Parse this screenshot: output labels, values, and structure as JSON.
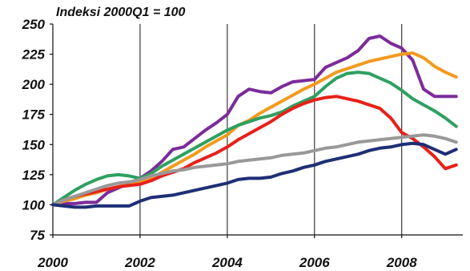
{
  "chart_data": {
    "type": "line",
    "title": "",
    "unit_label": "Indeksi 2000Q1 = 100",
    "xlabel": "",
    "ylabel": "",
    "xlim": [
      2000,
      2009.4
    ],
    "ylim": [
      75,
      250
    ],
    "y_ticks": [
      75,
      100,
      125,
      150,
      175,
      200,
      225,
      250
    ],
    "x_ticks": [
      2000,
      2002,
      2004,
      2006,
      2008
    ],
    "x_tick_labels": [
      "2000",
      "2002",
      "2004",
      "2006",
      "2008"
    ],
    "grid": {
      "vertical": true,
      "horizontal": false
    },
    "legend": "none",
    "series": [
      {
        "color": "#7B2C9A",
        "x": [
          2000,
          2000.25,
          2000.5,
          2000.75,
          2001,
          2001.25,
          2001.5,
          2001.75,
          2002,
          2002.25,
          2002.5,
          2002.75,
          2003,
          2003.25,
          2003.5,
          2003.75,
          2004,
          2004.25,
          2004.5,
          2004.75,
          2005,
          2005.25,
          2005.5,
          2005.75,
          2006,
          2006.25,
          2006.5,
          2006.75,
          2007,
          2007.25,
          2007.5,
          2007.75,
          2008,
          2008.25,
          2008.5,
          2008.75,
          2009,
          2009.25
        ],
        "values": [
          100,
          101,
          101,
          102,
          102,
          110,
          114,
          118,
          122,
          128,
          136,
          146,
          148,
          155,
          162,
          168,
          175,
          190,
          196,
          194,
          193,
          198,
          202,
          203,
          204,
          214,
          218,
          222,
          228,
          238,
          240,
          234,
          230,
          220,
          196,
          190,
          190,
          190
        ]
      },
      {
        "color": "#F29A1E",
        "x": [
          2000,
          2000.25,
          2000.5,
          2000.75,
          2001,
          2001.25,
          2001.5,
          2001.75,
          2002,
          2002.25,
          2002.5,
          2002.75,
          2003,
          2003.25,
          2003.5,
          2003.75,
          2004,
          2004.25,
          2004.5,
          2004.75,
          2005,
          2005.25,
          2005.5,
          2005.75,
          2006,
          2006.25,
          2006.5,
          2006.75,
          2007,
          2007.25,
          2007.5,
          2007.75,
          2008,
          2008.25,
          2008.5,
          2008.75,
          2009,
          2009.25
        ],
        "values": [
          100,
          103,
          105,
          108,
          110,
          113,
          115,
          117,
          119,
          122,
          127,
          132,
          137,
          142,
          148,
          153,
          158,
          166,
          170,
          176,
          181,
          186,
          191,
          196,
          200,
          205,
          210,
          213,
          216,
          219,
          221,
          223,
          225,
          226,
          222,
          215,
          210,
          206
        ]
      },
      {
        "color": "#2FA060",
        "x": [
          2000,
          2000.25,
          2000.5,
          2000.75,
          2001,
          2001.25,
          2001.5,
          2001.75,
          2002,
          2002.25,
          2002.5,
          2002.75,
          2003,
          2003.25,
          2003.5,
          2003.75,
          2004,
          2004.25,
          2004.5,
          2004.75,
          2005,
          2005.25,
          2005.5,
          2005.75,
          2006,
          2006.25,
          2006.5,
          2006.75,
          2007,
          2007.25,
          2007.5,
          2007.75,
          2008,
          2008.25,
          2008.5,
          2008.75,
          2009,
          2009.25
        ],
        "values": [
          100,
          106,
          112,
          117,
          121,
          124,
          125,
          124,
          122,
          126,
          132,
          137,
          142,
          147,
          152,
          157,
          162,
          166,
          169,
          172,
          174,
          177,
          182,
          186,
          190,
          198,
          205,
          209,
          210,
          209,
          205,
          201,
          195,
          188,
          183,
          178,
          172,
          165
        ]
      },
      {
        "color": "#E8201A",
        "x": [
          2000,
          2000.25,
          2000.5,
          2000.75,
          2001,
          2001.25,
          2001.5,
          2001.75,
          2002,
          2002.25,
          2002.5,
          2002.75,
          2003,
          2003.25,
          2003.5,
          2003.75,
          2004,
          2004.25,
          2004.5,
          2004.75,
          2005,
          2005.25,
          2005.5,
          2005.75,
          2006,
          2006.25,
          2006.5,
          2006.75,
          2007,
          2007.25,
          2007.5,
          2007.75,
          2008,
          2008.25,
          2008.5,
          2008.75,
          2009,
          2009.25
        ],
        "values": [
          100,
          104,
          107,
          109,
          111,
          113,
          115,
          116,
          117,
          120,
          124,
          127,
          130,
          135,
          139,
          143,
          148,
          154,
          159,
          164,
          169,
          175,
          180,
          184,
          187,
          189,
          190,
          188,
          186,
          183,
          180,
          172,
          160,
          155,
          148,
          140,
          130,
          133
        ]
      },
      {
        "color": "#999999",
        "x": [
          2000,
          2000.25,
          2000.5,
          2000.75,
          2001,
          2001.25,
          2001.5,
          2001.75,
          2002,
          2002.25,
          2002.5,
          2002.75,
          2003,
          2003.25,
          2003.5,
          2003.75,
          2004,
          2004.25,
          2004.5,
          2004.75,
          2005,
          2005.25,
          2005.5,
          2005.75,
          2006,
          2006.25,
          2006.5,
          2006.75,
          2007,
          2007.25,
          2007.5,
          2007.75,
          2008,
          2008.25,
          2008.5,
          2008.75,
          2009,
          2009.25
        ],
        "values": [
          100,
          104,
          107,
          110,
          113,
          116,
          118,
          119,
          121,
          124,
          126,
          128,
          129,
          131,
          132,
          133,
          134,
          136,
          137,
          138,
          139,
          141,
          142,
          143,
          145,
          147,
          148,
          150,
          152,
          153,
          154,
          155,
          156,
          157,
          158,
          157,
          155,
          152
        ]
      },
      {
        "color": "#1E2F75",
        "x": [
          2000,
          2000.25,
          2000.5,
          2000.75,
          2001,
          2001.25,
          2001.5,
          2001.75,
          2002,
          2002.25,
          2002.5,
          2002.75,
          2003,
          2003.25,
          2003.5,
          2003.75,
          2004,
          2004.25,
          2004.5,
          2004.75,
          2005,
          2005.25,
          2005.5,
          2005.75,
          2006,
          2006.25,
          2006.5,
          2006.75,
          2007,
          2007.25,
          2007.5,
          2007.75,
          2008,
          2008.25,
          2008.5,
          2008.75,
          2009,
          2009.25
        ],
        "values": [
          100,
          99,
          98,
          98,
          99,
          99,
          99,
          99,
          103,
          106,
          107,
          108,
          110,
          112,
          114,
          116,
          118,
          121,
          122,
          122,
          123,
          126,
          128,
          131,
          133,
          136,
          138,
          140,
          142,
          145,
          147,
          148,
          150,
          151,
          150,
          146,
          142,
          146
        ]
      }
    ]
  }
}
